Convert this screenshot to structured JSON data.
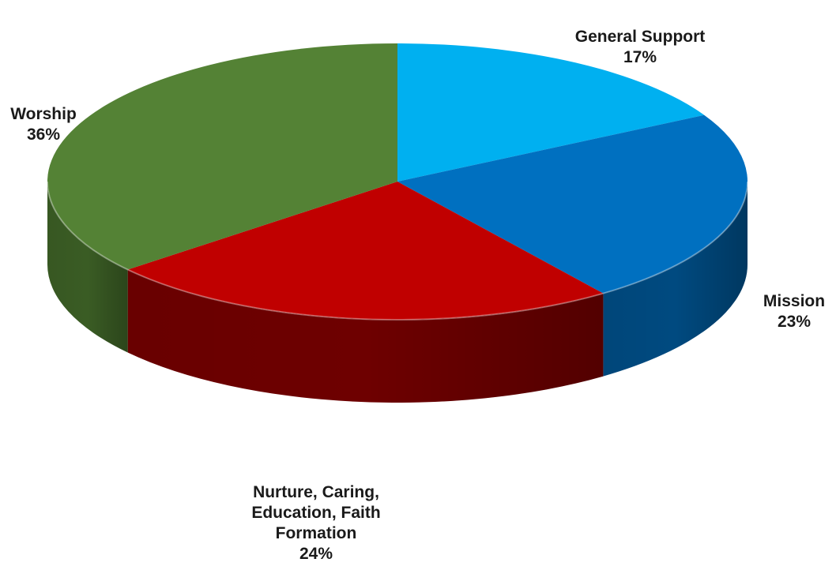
{
  "chart_data": {
    "type": "pie",
    "title": "",
    "categories": [
      "General Support",
      "Mission",
      "Nurture, Caring, Education, Faith Formation",
      "Worship"
    ],
    "values": [
      17,
      23,
      24,
      36
    ],
    "labels": [
      {
        "name": "General Support",
        "percent": "17%"
      },
      {
        "name": "Mission",
        "percent": "23%"
      },
      {
        "name": "Nurture, Caring, Education, Faith Formation",
        "percent": "24%"
      },
      {
        "name": "Worship",
        "percent": "36%"
      }
    ],
    "colors": [
      "#00b0f0",
      "#0070c0",
      "#c00000",
      "#548235"
    ],
    "side_colors": [
      "#0082b4",
      "#004a80",
      "#6e0000",
      "#3a5c24"
    ],
    "style": "3d",
    "legend": "none"
  }
}
